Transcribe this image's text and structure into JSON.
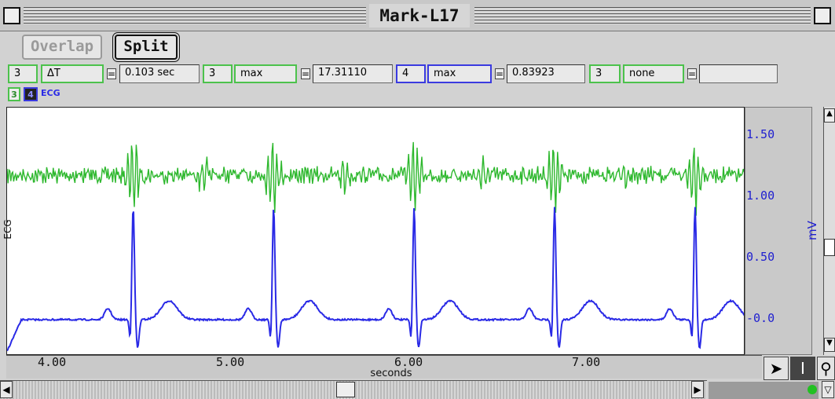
{
  "window": {
    "title": "Mark-L17"
  },
  "toolbar": {
    "overlap_label": "Overlap",
    "split_label": "Split"
  },
  "measurements": [
    {
      "channel": "3",
      "function": "ΔT",
      "value": "0.103 sec",
      "color": "#4cc24c"
    },
    {
      "channel": "3",
      "function": "max",
      "value": "17.31110",
      "color": "#4cc24c"
    },
    {
      "channel": "4",
      "function": "max",
      "value": "0.83923",
      "color": "#3a3ae0"
    },
    {
      "channel": "3",
      "function": "none",
      "value": "",
      "color": "#4cc24c"
    }
  ],
  "equals": "=",
  "channel_strip": {
    "ch3": "3",
    "ch4": "4",
    "name": "ECG"
  },
  "plot": {
    "left_label": "ECG",
    "y_unit": "mV",
    "y_ticks": [
      "1.50",
      "1.00",
      "0.50",
      "-0.0"
    ],
    "x_ticks": [
      "4.00",
      "5.00",
      "6.00",
      "7.00"
    ],
    "x_label": "seconds",
    "trace_colors": {
      "ch3": "#2eb82e",
      "ch4": "#2a2ae6"
    },
    "beat_times_sec": [
      4.6,
      5.38,
      6.16,
      6.94,
      7.72
    ],
    "x_range": [
      3.9,
      8.0
    ]
  },
  "icons": {
    "pointer": "arrow-pointer-icon",
    "ibeam": "i-beam-cursor-icon",
    "zoom": "magnifier-icon"
  }
}
